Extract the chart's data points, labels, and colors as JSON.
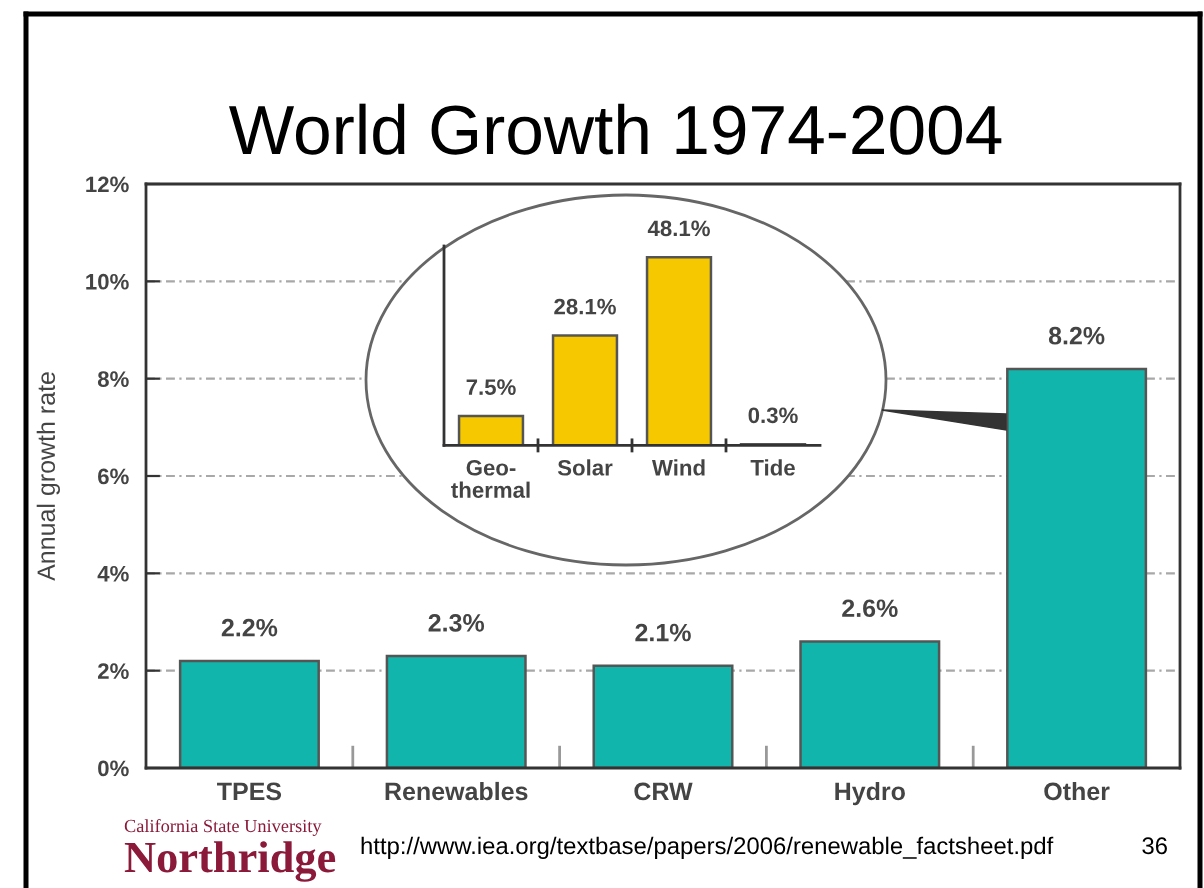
{
  "chart_data": [
    {
      "type": "bar",
      "title": "World Growth 1974-2004",
      "ylabel": "Annual growth rate",
      "categories": [
        "TPES",
        "Renewables",
        "CRW",
        "Hydro",
        "Other"
      ],
      "values": [
        2.2,
        2.3,
        2.1,
        2.6,
        8.2
      ],
      "value_labels": [
        "2.2%",
        "2.3%",
        "2.1%",
        "2.6%",
        "8.2%"
      ],
      "color": "#12b5ab",
      "ylim": [
        0,
        12
      ],
      "yticks": [
        {
          "value": 0,
          "label": "0%"
        },
        {
          "value": 2,
          "label": "2%"
        },
        {
          "value": 4,
          "label": "4%"
        },
        {
          "value": 6,
          "label": "6%"
        },
        {
          "value": 8,
          "label": "8%"
        },
        {
          "value": 10,
          "label": "10%"
        },
        {
          "value": 12,
          "label": "12%"
        }
      ],
      "grid": "y",
      "annotations": [
        "California State University",
        "Northridge",
        "http://www.iea.org/textbase/papers/2006/renewable_factsheet.pdf",
        "36"
      ]
    },
    {
      "type": "bar",
      "categories": [
        "Geo-\nthermal",
        "Solar",
        "Wind",
        "Tide"
      ],
      "values": [
        7.5,
        28.1,
        48.1,
        0.3
      ],
      "value_labels": [
        "7.5%",
        "28.1%",
        "48.1%",
        "0.3%"
      ],
      "color": "#f6c800",
      "tick_labels": "x"
    }
  ]
}
